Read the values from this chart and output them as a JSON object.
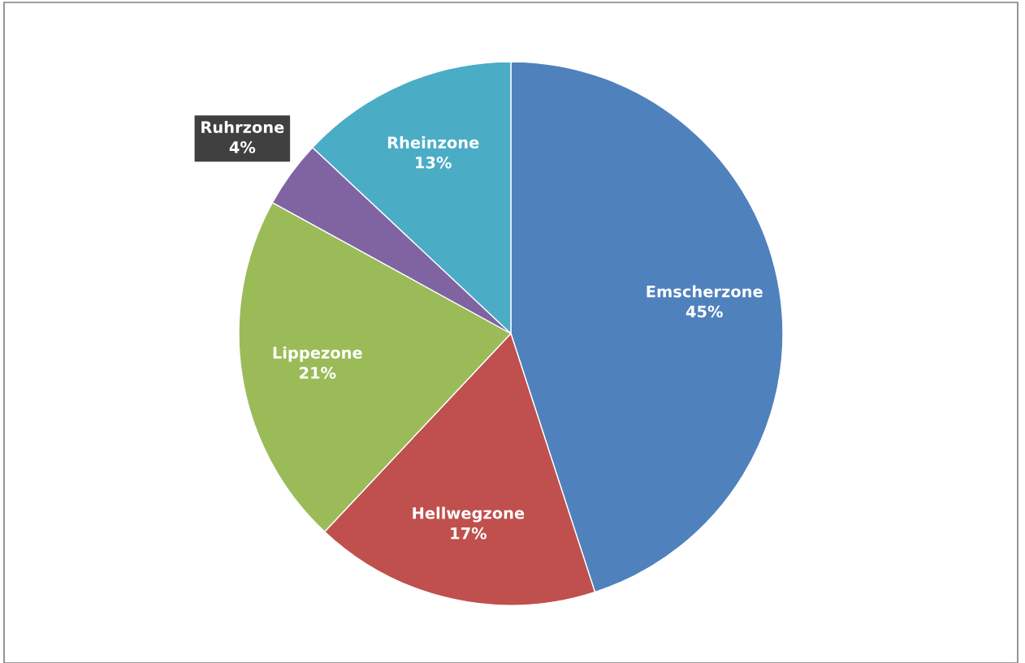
{
  "chart_data": {
    "type": "pie",
    "categories": [
      "Emscherzone",
      "Hellwegzone",
      "Lippezone",
      "Ruhrzone",
      "Rheinzone"
    ],
    "values": [
      45,
      17,
      21,
      4,
      13
    ],
    "colors": [
      "#4f81bd",
      "#c0504d",
      "#9bbb59",
      "#8064a2",
      "#4bacc6"
    ],
    "value_labels": [
      "45%",
      "17%",
      "21%",
      "4%",
      "13%"
    ],
    "legend": false
  }
}
